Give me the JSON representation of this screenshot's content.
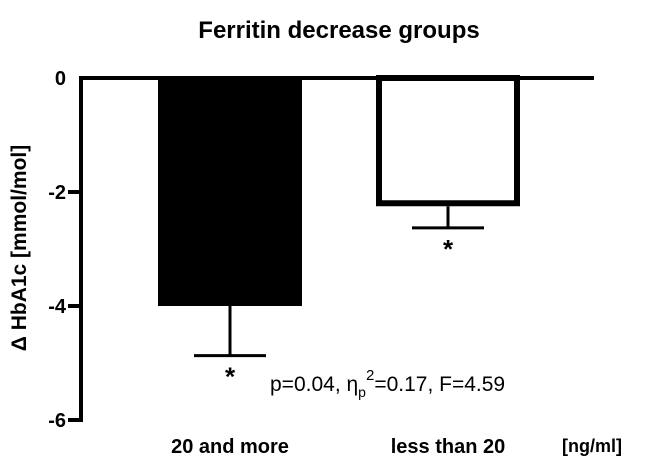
{
  "chart_data": {
    "type": "bar",
    "title": "Ferritin decrease groups",
    "ylabel": "Δ HbA1c [mmol/mol]",
    "x_unit_label": "[ng/ml]",
    "categories": [
      "20 and more",
      "less than 20"
    ],
    "values": [
      -4.0,
      -2.25
    ],
    "error_bars": [
      0.87,
      0.38
    ],
    "significance_marks": [
      "*",
      "*"
    ],
    "bar_fill": [
      "#000000",
      "#ffffff"
    ],
    "bar_stroke": "#000000",
    "ylim": [
      -6,
      0
    ],
    "yticks": [
      0,
      -2,
      -4,
      -6
    ],
    "ytick_labels": [
      "0",
      "-2",
      "-4",
      "-6"
    ],
    "annotation": {
      "p": "p=0.04, ",
      "eta_symbol": "η",
      "eta_sub": "p",
      "eta_sup": "2",
      "eta_value": "=0.17, F=4.59"
    },
    "grid": false,
    "legend": "none"
  }
}
